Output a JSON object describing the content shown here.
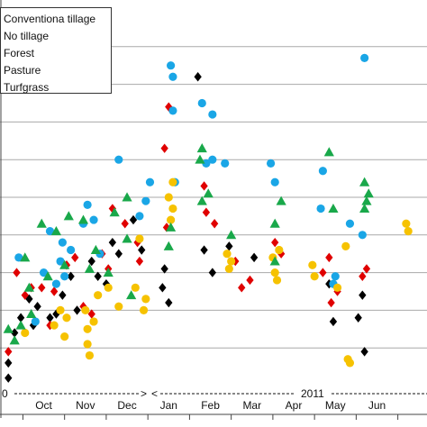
{
  "chart_data": {
    "type": "scatter",
    "title": "",
    "xlabel": "",
    "ylabel": "",
    "x_tick_labels": [
      "Oct",
      "Nov",
      "Dec",
      "Jan",
      "Feb",
      "Mar",
      "Apr",
      "May",
      "Jun"
    ],
    "x_tick_values": [
      1.05,
      2.05,
      3.05,
      4.05,
      5.05,
      6.05,
      7.05,
      8.05,
      9.05
    ],
    "x_lim": [
      0,
      10.25
    ],
    "y_lim": [
      0,
      10
    ],
    "grid": "horizontal",
    "legend": {
      "placement": "top-left"
    },
    "annotations": {
      "year_left_fragment": "0",
      "year_right": "2011",
      "arrow_right_head": ">",
      "arrow_left_head": "<"
    },
    "series": [
      {
        "name": "Conventiona tillage",
        "marker": "diamond",
        "color": "#000000",
        "points": [
          [
            0.2,
            0.2
          ],
          [
            0.2,
            0.6
          ],
          [
            0.35,
            1.4
          ],
          [
            0.5,
            1.8
          ],
          [
            0.7,
            2.3
          ],
          [
            0.8,
            1.6
          ],
          [
            0.9,
            2.1
          ],
          [
            1.2,
            1.8
          ],
          [
            1.35,
            1.9
          ],
          [
            1.5,
            2.4
          ],
          [
            1.7,
            2.9
          ],
          [
            1.85,
            2.0
          ],
          [
            2.2,
            3.3
          ],
          [
            2.35,
            2.9
          ],
          [
            2.55,
            2.7
          ],
          [
            2.7,
            3.8
          ],
          [
            2.85,
            3.5
          ],
          [
            3.2,
            4.4
          ],
          [
            3.4,
            3.6
          ],
          [
            3.9,
            2.6
          ],
          [
            3.95,
            3.1
          ],
          [
            4.05,
            2.2
          ],
          [
            4.75,
            8.2
          ],
          [
            4.9,
            3.6
          ],
          [
            5.1,
            3.0
          ],
          [
            5.5,
            3.7
          ],
          [
            6.1,
            3.4
          ],
          [
            7.9,
            2.7
          ],
          [
            8.0,
            1.7
          ],
          [
            8.6,
            1.8
          ],
          [
            8.7,
            2.4
          ],
          [
            8.75,
            0.9
          ]
        ]
      },
      {
        "name": "No tillage",
        "marker": "diamond",
        "color": "#e00000",
        "points": [
          [
            0.2,
            0.9
          ],
          [
            0.4,
            3.0
          ],
          [
            0.6,
            2.4
          ],
          [
            0.75,
            2.6
          ],
          [
            1.0,
            2.6
          ],
          [
            1.2,
            1.6
          ],
          [
            1.3,
            2.5
          ],
          [
            1.6,
            3.2
          ],
          [
            1.8,
            3.4
          ],
          [
            2.0,
            2.1
          ],
          [
            2.2,
            1.9
          ],
          [
            2.45,
            3.5
          ],
          [
            2.6,
            3.1
          ],
          [
            2.7,
            4.7
          ],
          [
            3.0,
            4.3
          ],
          [
            3.3,
            3.8
          ],
          [
            3.35,
            3.3
          ],
          [
            3.95,
            6.3
          ],
          [
            4.0,
            4.2
          ],
          [
            4.05,
            7.4
          ],
          [
            4.9,
            5.3
          ],
          [
            4.95,
            4.6
          ],
          [
            5.15,
            4.3
          ],
          [
            5.65,
            3.3
          ],
          [
            5.8,
            2.6
          ],
          [
            6.0,
            2.8
          ],
          [
            6.6,
            3.8
          ],
          [
            6.75,
            3.5
          ],
          [
            7.75,
            3.0
          ],
          [
            7.95,
            2.2
          ],
          [
            7.9,
            3.4
          ],
          [
            8.1,
            2.5
          ],
          [
            8.7,
            2.9
          ],
          [
            8.8,
            3.1
          ]
        ]
      },
      {
        "name": "Forest",
        "marker": "circle",
        "color": "#1aa6e6",
        "points": [
          [
            0.45,
            3.4
          ],
          [
            0.85,
            1.7
          ],
          [
            1.05,
            3.0
          ],
          [
            1.2,
            4.1
          ],
          [
            1.35,
            2.7
          ],
          [
            1.45,
            3.3
          ],
          [
            1.5,
            3.8
          ],
          [
            1.55,
            2.9
          ],
          [
            1.7,
            3.6
          ],
          [
            2.0,
            4.3
          ],
          [
            2.1,
            4.8
          ],
          [
            2.25,
            4.4
          ],
          [
            2.4,
            3.5
          ],
          [
            2.85,
            6.0
          ],
          [
            3.35,
            4.5
          ],
          [
            3.5,
            4.9
          ],
          [
            3.6,
            5.4
          ],
          [
            4.1,
            8.5
          ],
          [
            4.15,
            8.2
          ],
          [
            4.15,
            7.3
          ],
          [
            4.2,
            5.4
          ],
          [
            4.85,
            7.5
          ],
          [
            4.95,
            5.9
          ],
          [
            5.1,
            7.2
          ],
          [
            5.1,
            6.0
          ],
          [
            5.4,
            5.9
          ],
          [
            6.5,
            5.9
          ],
          [
            6.6,
            5.4
          ],
          [
            7.7,
            4.7
          ],
          [
            7.75,
            5.7
          ],
          [
            8.0,
            2.7
          ],
          [
            8.05,
            2.9
          ],
          [
            8.4,
            4.3
          ],
          [
            8.7,
            4.0
          ],
          [
            8.75,
            8.7
          ]
        ]
      },
      {
        "name": "Pasture",
        "marker": "circle",
        "color": "#f6c200",
        "points": [
          [
            0.6,
            1.4
          ],
          [
            1.3,
            1.6
          ],
          [
            1.45,
            2.0
          ],
          [
            1.55,
            1.3
          ],
          [
            1.6,
            1.8
          ],
          [
            2.05,
            2.0
          ],
          [
            2.1,
            1.5
          ],
          [
            2.1,
            1.1
          ],
          [
            2.15,
            0.8
          ],
          [
            2.25,
            1.7
          ],
          [
            2.35,
            2.4
          ],
          [
            2.6,
            2.6
          ],
          [
            2.85,
            2.1
          ],
          [
            3.25,
            2.6
          ],
          [
            3.35,
            3.9
          ],
          [
            3.45,
            2.0
          ],
          [
            3.5,
            2.3
          ],
          [
            4.05,
            5.0
          ],
          [
            4.1,
            4.4
          ],
          [
            4.15,
            4.7
          ],
          [
            4.15,
            5.4
          ],
          [
            5.45,
            3.5
          ],
          [
            5.5,
            3.1
          ],
          [
            5.55,
            3.3
          ],
          [
            6.6,
            3.0
          ],
          [
            6.55,
            3.4
          ],
          [
            6.65,
            2.8
          ],
          [
            6.7,
            3.6
          ],
          [
            7.5,
            3.2
          ],
          [
            7.55,
            2.9
          ],
          [
            8.1,
            2.6
          ],
          [
            8.3,
            3.7
          ],
          [
            8.35,
            0.7
          ],
          [
            8.4,
            0.6
          ],
          [
            9.75,
            4.3
          ],
          [
            9.8,
            4.1
          ]
        ]
      },
      {
        "name": "Turfgrass",
        "marker": "triangle",
        "color": "#19a84a",
        "points": [
          [
            0.2,
            1.5
          ],
          [
            0.35,
            1.2
          ],
          [
            0.5,
            1.6
          ],
          [
            0.6,
            3.4
          ],
          [
            0.7,
            2.6
          ],
          [
            0.75,
            1.9
          ],
          [
            1.0,
            4.3
          ],
          [
            1.15,
            2.9
          ],
          [
            1.35,
            4.1
          ],
          [
            1.55,
            3.2
          ],
          [
            1.65,
            4.5
          ],
          [
            2.0,
            4.4
          ],
          [
            2.15,
            3.1
          ],
          [
            2.3,
            3.6
          ],
          [
            2.6,
            3.0
          ],
          [
            2.75,
            4.6
          ],
          [
            3.05,
            5.0
          ],
          [
            3.05,
            3.9
          ],
          [
            3.15,
            2.4
          ],
          [
            4.05,
            3.7
          ],
          [
            4.1,
            4.2
          ],
          [
            4.85,
            6.3
          ],
          [
            4.8,
            6.0
          ],
          [
            4.85,
            4.9
          ],
          [
            5.0,
            5.1
          ],
          [
            5.55,
            4.0
          ],
          [
            6.6,
            4.3
          ],
          [
            6.6,
            3.3
          ],
          [
            6.75,
            4.9
          ],
          [
            7.9,
            6.2
          ],
          [
            8.0,
            4.7
          ],
          [
            8.75,
            4.7
          ],
          [
            8.8,
            4.9
          ],
          [
            8.85,
            5.1
          ],
          [
            8.75,
            5.4
          ]
        ]
      }
    ]
  }
}
